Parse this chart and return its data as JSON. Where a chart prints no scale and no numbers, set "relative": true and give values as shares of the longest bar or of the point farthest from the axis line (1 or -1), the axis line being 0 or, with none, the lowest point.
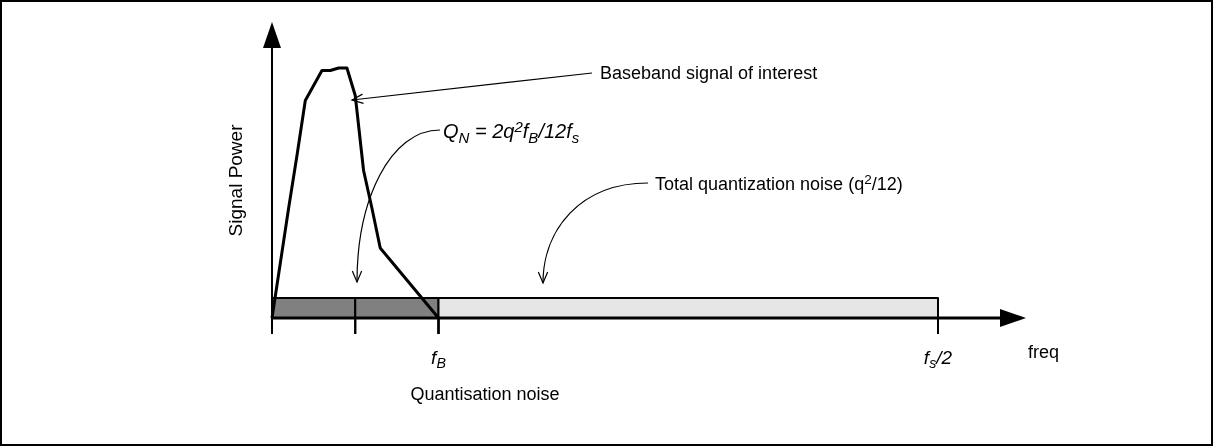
{
  "chart_data": {
    "type": "line",
    "relative": true,
    "xlabel": "freq",
    "ylabel": "Signal Power",
    "categories": [
      null,
      null,
      null,
      null,
      null,
      null,
      null,
      null,
      null,
      null,
      null,
      null,
      null,
      null,
      null,
      null,
      null,
      null,
      null,
      null,
      "f$_{B}$",
      null,
      null,
      null,
      null,
      null,
      null,
      null,
      null,
      null,
      null,
      null,
      null,
      null,
      null,
      null,
      null,
      null,
      null,
      null,
      null,
      null,
      null,
      null,
      null,
      null,
      null,
      null,
      null,
      null,
      null,
      null,
      null,
      null,
      null,
      null,
      null,
      null,
      null,
      null,
      null,
      null,
      null,
      null,
      null,
      null,
      null,
      null,
      null,
      null,
      null,
      null,
      null,
      null,
      null,
      null,
      null,
      null,
      null,
      null,
      "f$_{s}$/2"
    ],
    "series": [
      {
        "type": "area",
        "color": "#808080",
        "values": [
          0.08,
          0.08,
          0.08,
          0.08,
          0.08,
          0.08,
          0.08,
          0.08,
          0.08,
          0.08,
          0.08,
          null,
          null,
          null,
          null,
          null,
          null,
          null,
          null,
          null,
          null,
          null,
          null,
          null,
          null,
          null,
          null,
          null,
          null,
          null,
          null,
          null,
          null,
          null,
          null,
          null,
          null,
          null,
          null,
          null,
          null,
          null,
          null,
          null,
          null,
          null,
          null,
          null,
          null,
          null,
          null,
          null,
          null,
          null,
          null,
          null,
          null,
          null,
          null,
          null,
          null,
          null,
          null,
          null,
          null,
          null,
          null,
          null,
          null,
          null,
          null,
          null,
          null,
          null,
          null,
          null,
          null,
          null,
          null,
          null,
          null
        ]
      },
      {
        "type": "area",
        "color": "#808080",
        "values": [
          null,
          null,
          null,
          null,
          null,
          null,
          null,
          null,
          null,
          null,
          0.08,
          0.08,
          0.08,
          0.08,
          0.08,
          0.08,
          0.08,
          0.08,
          0.08,
          0.08,
          0.08,
          null,
          null,
          null,
          null,
          null,
          null,
          null,
          null,
          null,
          null,
          null,
          null,
          null,
          null,
          null,
          null,
          null,
          null,
          null,
          null,
          null,
          null,
          null,
          null,
          null,
          null,
          null,
          null,
          null,
          null,
          null,
          null,
          null,
          null,
          null,
          null,
          null,
          null,
          null,
          null,
          null,
          null,
          null,
          null,
          null,
          null,
          null,
          null,
          null,
          null,
          null,
          null,
          null,
          null,
          null,
          null,
          null,
          null,
          null,
          null
        ]
      },
      {
        "type": "area",
        "color": "#e6e6e6",
        "values": [
          null,
          null,
          null,
          null,
          null,
          null,
          null,
          null,
          null,
          null,
          null,
          null,
          null,
          null,
          null,
          null,
          null,
          null,
          null,
          null,
          0.08,
          0.08,
          0.08,
          0.08,
          0.08,
          0.08,
          0.08,
          0.08,
          0.08,
          0.08,
          0.08,
          0.08,
          0.08,
          0.08,
          0.08,
          0.08,
          0.08,
          0.08,
          0.08,
          0.08,
          0.08,
          0.08,
          0.08,
          0.08,
          0.08,
          0.08,
          0.08,
          0.08,
          0.08,
          0.08,
          0.08,
          0.08,
          0.08,
          0.08,
          0.08,
          0.08,
          0.08,
          0.08,
          0.08,
          0.08,
          0.08,
          0.08,
          0.08,
          0.08,
          0.08,
          0.08,
          0.08,
          0.08,
          0.08,
          0.08,
          0.08,
          0.08,
          0.08,
          0.08,
          0.08,
          0.08,
          0.08,
          0.08,
          0.08,
          0.08,
          0.08
        ]
      },
      {
        "color": "#000000",
        "values": [
          0,
          0.22,
          0.44,
          0.65,
          0.87,
          0.93,
          0.99,
          0.99,
          1,
          1,
          0.89,
          0.59,
          0.44,
          0.28,
          0.24,
          0.2,
          0.16,
          0.12,
          0.08,
          0.04,
          0,
          null,
          null,
          null,
          null,
          null,
          null,
          null,
          null,
          null,
          null,
          null,
          null,
          null,
          null,
          null,
          null,
          null,
          null,
          null,
          null,
          null,
          null,
          null,
          null,
          null,
          null,
          null,
          null,
          null,
          null,
          null,
          null,
          null,
          null,
          null,
          null,
          null,
          null,
          null,
          null,
          null,
          null,
          null,
          null,
          null,
          null,
          null,
          null,
          null,
          null,
          null,
          null,
          null,
          null,
          null,
          null,
          null,
          null,
          null,
          null
        ]
      }
    ],
    "annotations": [
      "Baseband signal of interest",
      "Q$_{N}$ = 2q$^{2}$f$_{B}$/12f$_{s}$",
      "Total quantization noise (q$^{2}$/12)",
      "Quantisation noise"
    ],
    "marker": "none",
    "line_style": "solid"
  }
}
